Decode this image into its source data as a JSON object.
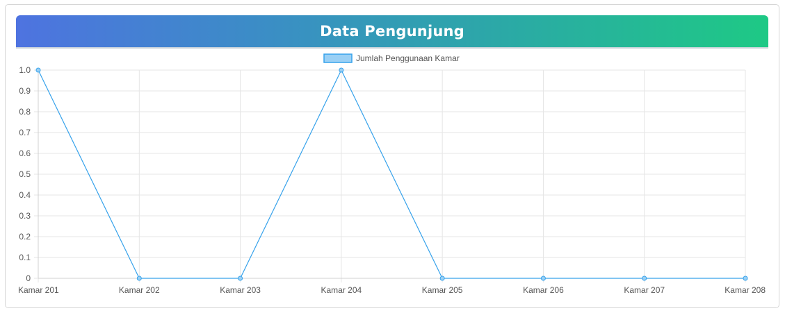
{
  "header": {
    "title": "Data Pengunjung"
  },
  "chart_data": {
    "type": "line",
    "categories": [
      "Kamar 201",
      "Kamar 202",
      "Kamar 203",
      "Kamar 204",
      "Kamar 205",
      "Kamar 206",
      "Kamar 207",
      "Kamar 208"
    ],
    "series": [
      {
        "name": "Jumlah Penggunaan Kamar",
        "values": [
          1,
          0,
          0,
          1,
          0,
          0,
          0,
          0
        ],
        "color": "#36a2eb",
        "fill_color": "#9ad0f5"
      }
    ],
    "ylim": [
      0,
      1
    ],
    "yticks": [
      "0",
      "0.1",
      "0.2",
      "0.3",
      "0.4",
      "0.5",
      "0.6",
      "0.7",
      "0.8",
      "0.9",
      "1.0"
    ],
    "grid": true,
    "legend_position": "top-center"
  }
}
